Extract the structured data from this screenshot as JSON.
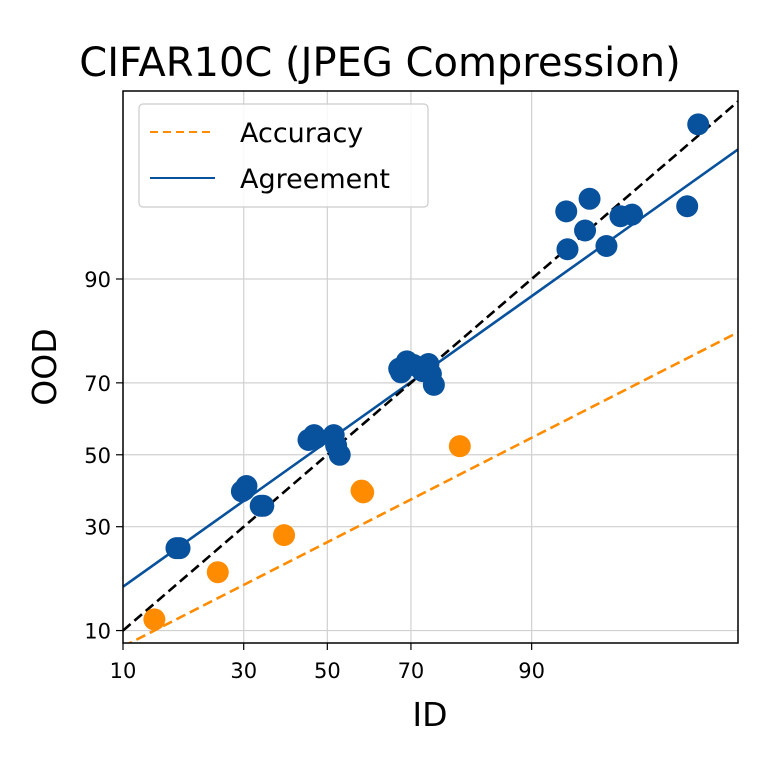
{
  "chart_data": {
    "type": "scatter",
    "title": "CIFAR10C (JPEG Compression)",
    "xlabel": "ID",
    "ylabel": "OOD",
    "scale": "probit",
    "xlim": [
      10,
      99.5
    ],
    "ylim": [
      8.5,
      99.6
    ],
    "x_ticks": [
      10,
      30,
      50,
      70,
      90
    ],
    "y_ticks": [
      10,
      30,
      50,
      70,
      90
    ],
    "grid": true,
    "legend_position": "top-left",
    "legend": [
      {
        "label": "Accuracy",
        "style": "dashed",
        "color": "#ff8c00"
      },
      {
        "label": "Agreement",
        "style": "solid",
        "color": "#08519c"
      }
    ],
    "series": [
      {
        "name": "Accuracy",
        "color": "#ff8c00",
        "line": {
          "style": "dashed",
          "endpoints": [
            [
              10,
              8.1
            ],
            [
              99.5,
              81.4
            ]
          ]
        },
        "points": [
          [
            13.9,
            11.5
          ],
          [
            24.6,
            19.6
          ],
          [
            39.3,
            27.9
          ],
          [
            58.5,
            39.7
          ],
          [
            58.9,
            39.2
          ],
          [
            79.7,
            52.5
          ]
        ]
      },
      {
        "name": "Agreement",
        "color": "#08519c",
        "line": {
          "style": "solid",
          "endpoints": [
            [
              10,
              16.8
            ],
            [
              99.5,
              98.7
            ]
          ]
        },
        "points": [
          [
            17.2,
            24.8
          ],
          [
            17.7,
            24.8
          ],
          [
            29.6,
            39.5
          ],
          [
            30.6,
            41.0
          ],
          [
            30.1,
            39.9
          ],
          [
            33.8,
            35.5
          ],
          [
            34.4,
            35.5
          ],
          [
            45.3,
            54.3
          ],
          [
            46.7,
            55.7
          ],
          [
            47.2,
            54.9
          ],
          [
            51.6,
            55.7
          ],
          [
            52.2,
            52.7
          ],
          [
            53.1,
            50.0
          ],
          [
            67.4,
            73.5
          ],
          [
            67.8,
            72.6
          ],
          [
            69.1,
            75.2
          ],
          [
            70.5,
            74.4
          ],
          [
            71.6,
            73.9
          ],
          [
            72.5,
            72.9
          ],
          [
            73.7,
            74.6
          ],
          [
            73.0,
            73.7
          ],
          [
            74.2,
            72.2
          ],
          [
            74.8,
            69.5
          ],
          [
            93.3,
            96.2
          ],
          [
            95.0,
            96.9
          ],
          [
            94.7,
            94.9
          ],
          [
            93.4,
            93.3
          ],
          [
            96.0,
            93.6
          ],
          [
            96.7,
            95.9
          ],
          [
            97.2,
            96.0
          ],
          [
            98.8,
            96.5
          ],
          [
            99.0,
            99.2
          ]
        ]
      },
      {
        "name": "",
        "color": "#000000",
        "line": {
          "style": "dashed",
          "endpoints": [
            [
              10,
              10
            ],
            [
              99.5,
              99.5
            ]
          ]
        },
        "points": []
      }
    ]
  }
}
